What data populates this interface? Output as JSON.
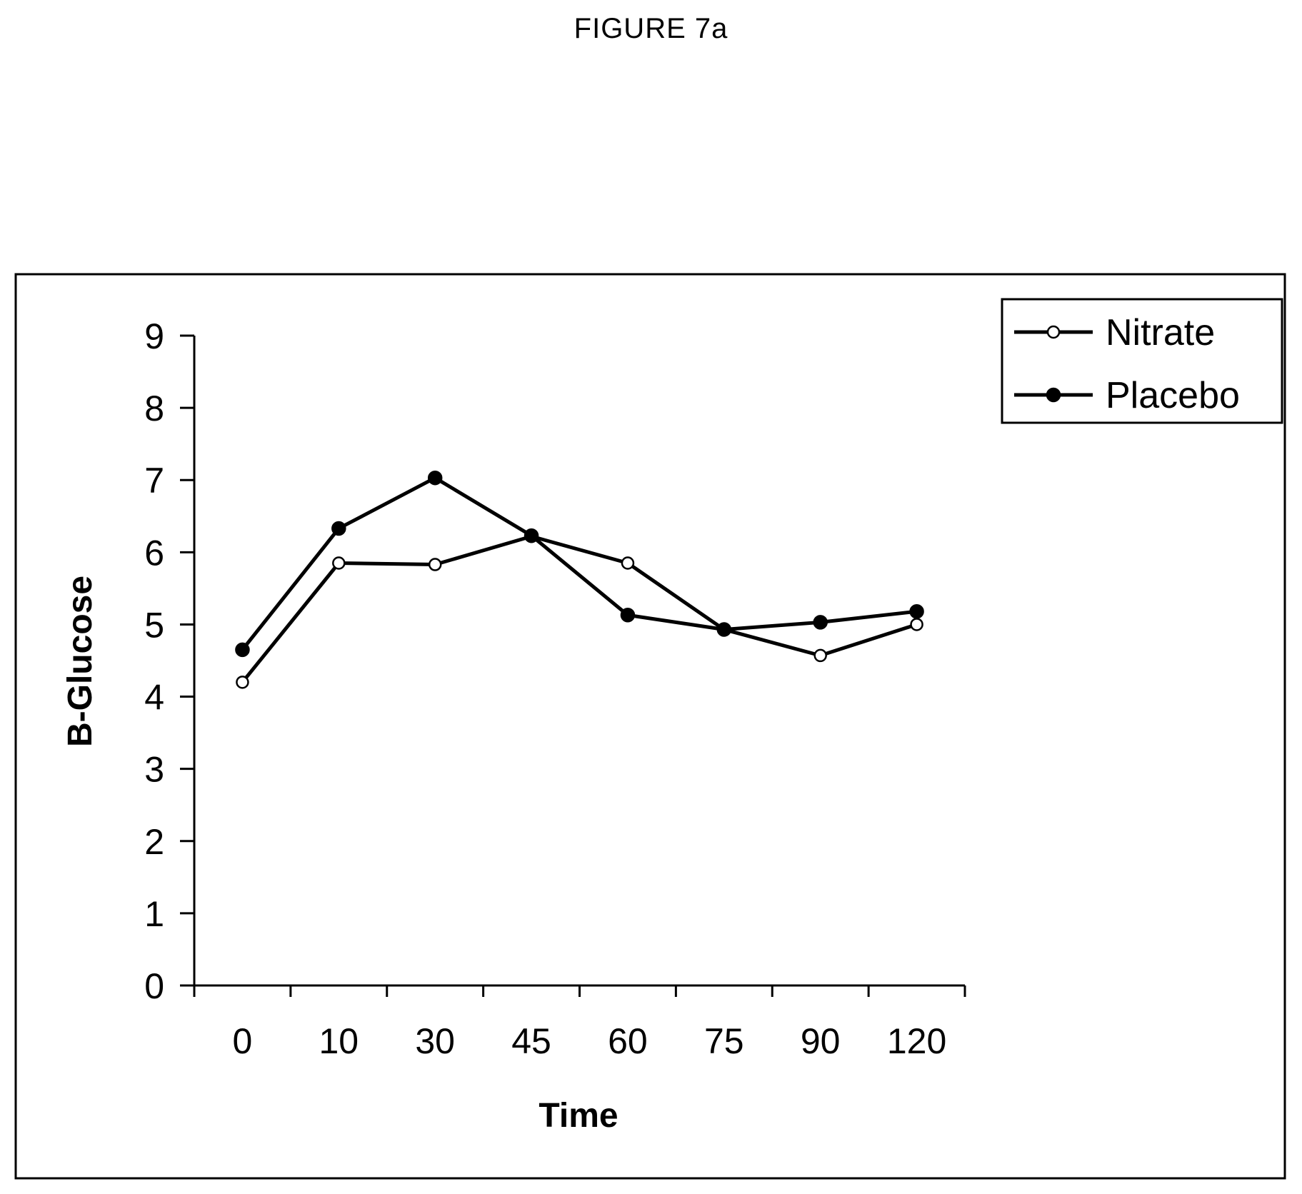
{
  "figure_label": "FIGURE 7a",
  "chart_data": {
    "type": "line",
    "title": "FIGURE 7a",
    "xlabel": "Time",
    "ylabel": "B-Glucose",
    "categories": [
      "0",
      "10",
      "30",
      "45",
      "60",
      "75",
      "90",
      "120"
    ],
    "ylim": [
      0,
      9
    ],
    "yticks": [
      0,
      1,
      2,
      3,
      4,
      5,
      6,
      7,
      8,
      9
    ],
    "grid": false,
    "legend_position": "top-right",
    "series": [
      {
        "name": "Nitrate",
        "marker": "open-circle",
        "color": "#000000",
        "values": [
          4.2,
          5.85,
          5.83,
          6.22,
          5.85,
          4.93,
          4.57,
          5.0
        ]
      },
      {
        "name": "Placebo",
        "marker": "filled-circle",
        "color": "#000000",
        "values": [
          4.65,
          6.33,
          7.03,
          6.23,
          5.13,
          4.93,
          5.03,
          5.18
        ]
      }
    ]
  }
}
